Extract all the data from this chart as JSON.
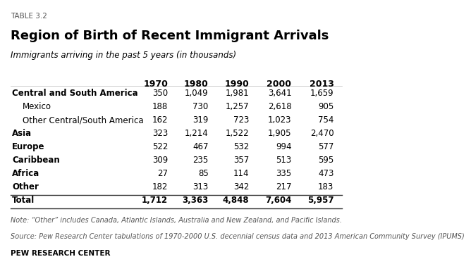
{
  "table_label": "TABLE 3.2",
  "title": "Region of Birth of Recent Immigrant Arrivals",
  "subtitle": "Immigrants arriving in the past 5 years (in thousands)",
  "columns": [
    "1970",
    "1980",
    "1990",
    "2000",
    "2013"
  ],
  "rows": [
    {
      "label": "Central and South America",
      "bold": true,
      "indent": 0,
      "values": [
        "350",
        "1,049",
        "1,981",
        "3,641",
        "1,659"
      ]
    },
    {
      "label": "Mexico",
      "bold": false,
      "indent": 1,
      "values": [
        "188",
        "730",
        "1,257",
        "2,618",
        "905"
      ]
    },
    {
      "label": "Other Central/South America",
      "bold": false,
      "indent": 1,
      "values": [
        "162",
        "319",
        "723",
        "1,023",
        "754"
      ]
    },
    {
      "label": "Asia",
      "bold": true,
      "indent": 0,
      "values": [
        "323",
        "1,214",
        "1,522",
        "1,905",
        "2,470"
      ]
    },
    {
      "label": "Europe",
      "bold": true,
      "indent": 0,
      "values": [
        "522",
        "467",
        "532",
        "994",
        "577"
      ]
    },
    {
      "label": "Caribbean",
      "bold": true,
      "indent": 0,
      "values": [
        "309",
        "235",
        "357",
        "513",
        "595"
      ]
    },
    {
      "label": "Africa",
      "bold": true,
      "indent": 0,
      "values": [
        "27",
        "85",
        "114",
        "335",
        "473"
      ]
    },
    {
      "label": "Other",
      "bold": true,
      "indent": 0,
      "values": [
        "182",
        "313",
        "342",
        "217",
        "183"
      ]
    },
    {
      "label": "Total",
      "bold": true,
      "indent": 0,
      "values": [
        "1,712",
        "3,363",
        "4,848",
        "7,604",
        "5,957"
      ],
      "total": true
    }
  ],
  "note": "Note: “Other” includes Canada, Atlantic Islands, Australia and New Zealand, and Pacific Islands.",
  "source": "Source: Pew Research Center tabulations of 1970-2000 U.S. decennial census data and 2013 American Community Survey (IPUMS)",
  "footer": "PEW RESEARCH CENTER",
  "bg_color": "#ffffff",
  "text_color": "#000000",
  "note_color": "#555555"
}
